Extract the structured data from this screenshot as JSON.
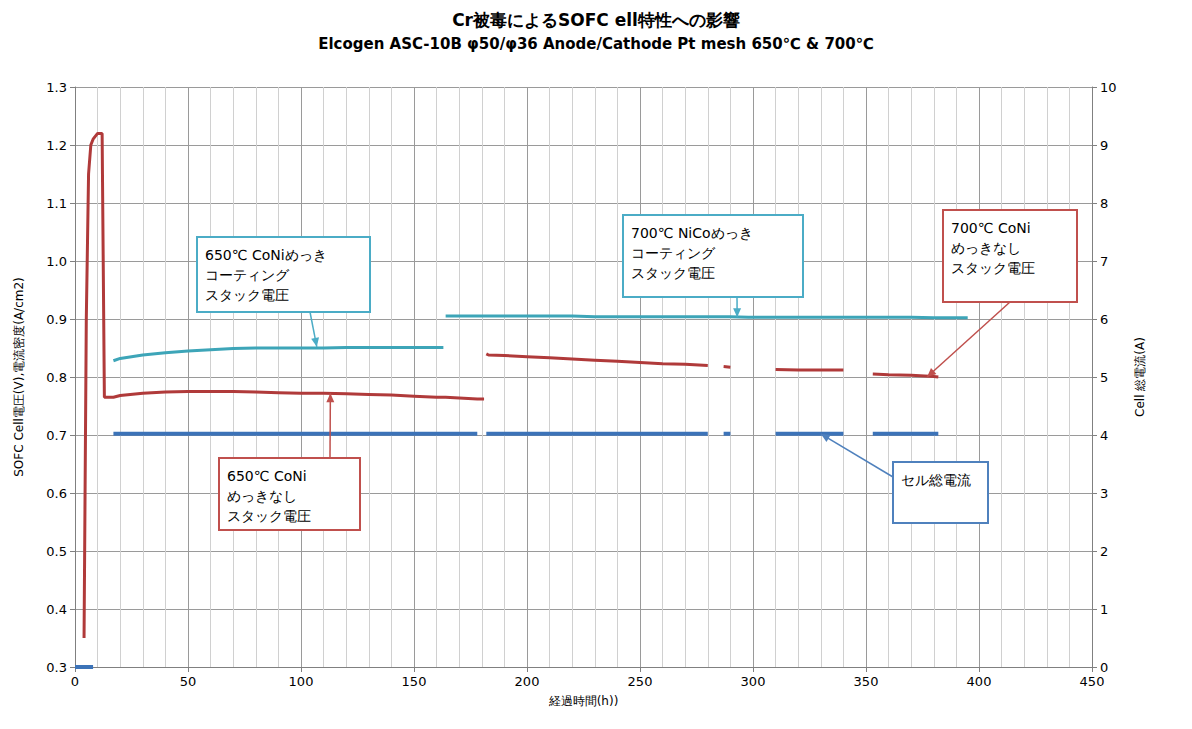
{
  "chart_data": {
    "type": "line",
    "title": "Cr被毒によるSOFC ell特性への影響",
    "subtitle": "Elcogen ASC-10B φ50/φ36 Anode/Cathode Pt mesh 650℃ & 700℃",
    "x_label": "経過時間(h))",
    "y_label": "SOFC Cell電圧(V),電流密度(A/cm2)",
    "y2_label": "Cell 総電流(A)",
    "grid": true,
    "xlim": [
      0,
      450
    ],
    "xticks": [
      0,
      50,
      100,
      150,
      200,
      250,
      300,
      350,
      400,
      450
    ],
    "ylim": [
      0.3,
      1.3
    ],
    "yticks": [
      0.3,
      0.4,
      0.5,
      0.6,
      0.7,
      0.8,
      0.9,
      {
        "value": 1,
        "label": "1.0"
      },
      1.1,
      1.2,
      1.3
    ],
    "y2lim": [
      0,
      10
    ],
    "y2ticks": [
      0,
      1,
      2,
      3,
      4,
      5,
      6,
      7,
      8,
      9,
      10
    ],
    "x": [
      0,
      4,
      5,
      6,
      7,
      8,
      10,
      12,
      13,
      17,
      20,
      30,
      40,
      50,
      60,
      70,
      80,
      90,
      100,
      110,
      120,
      130,
      140,
      150,
      160,
      163,
      164,
      170,
      178,
      180,
      181,
      182,
      183,
      190,
      200,
      210,
      220,
      230,
      240,
      250,
      260,
      270,
      280,
      283,
      287,
      290,
      298,
      310,
      320,
      330,
      340,
      345,
      353,
      360,
      370,
      380,
      382,
      390,
      395
    ],
    "series": [
      {
        "color": "#b03a3a",
        "line_style": "solid",
        "values": [
          null,
          0.35,
          0.9,
          1.15,
          1.2,
          1.21,
          1.22,
          1.22,
          0.765,
          0.765,
          0.768,
          0.772,
          0.774,
          0.775,
          0.775,
          0.775,
          0.774,
          0.773,
          0.772,
          0.772,
          0.771,
          0.77,
          0.769,
          0.767,
          0.765,
          0.765,
          0.765,
          0.764,
          0.762,
          0.762,
          0.762,
          null,
          null,
          null,
          null,
          null,
          null,
          null,
          null,
          null,
          null,
          null,
          null,
          null,
          null,
          null,
          null,
          null,
          null,
          null,
          null,
          null,
          null,
          null,
          null,
          null,
          null,
          null,
          null
        ]
      },
      {
        "color": "#b03a3a",
        "line_style": "solid",
        "values": [
          null,
          null,
          null,
          null,
          null,
          null,
          null,
          null,
          null,
          null,
          null,
          null,
          null,
          null,
          null,
          null,
          null,
          null,
          null,
          null,
          null,
          null,
          null,
          null,
          null,
          null,
          null,
          null,
          null,
          null,
          null,
          0.84,
          0.838,
          0.837,
          0.835,
          0.833,
          0.831,
          0.829,
          0.827,
          0.825,
          0.823,
          0.822,
          0.82,
          null,
          0.818,
          0.817,
          null,
          0.813,
          0.812,
          0.812,
          0.812,
          null,
          0.805,
          0.804,
          0.803,
          0.801,
          0.8,
          null,
          null
        ]
      },
      {
        "color": "#3da5b8",
        "line_style": "solid",
        "values": [
          null,
          null,
          null,
          null,
          null,
          null,
          null,
          null,
          null,
          0.828,
          0.832,
          0.838,
          0.842,
          0.845,
          0.847,
          0.849,
          0.85,
          0.85,
          0.85,
          0.85,
          0.851,
          0.851,
          0.851,
          0.851,
          0.851,
          0.851,
          null,
          null,
          null,
          null,
          null,
          null,
          null,
          null,
          null,
          null,
          null,
          null,
          null,
          null,
          null,
          null,
          null,
          null,
          null,
          null,
          null,
          null,
          null,
          null,
          null,
          null,
          null,
          null,
          null,
          null,
          null,
          null,
          null
        ]
      },
      {
        "color": "#3da5b8",
        "line_style": "solid",
        "values": [
          null,
          null,
          null,
          null,
          null,
          null,
          null,
          null,
          null,
          null,
          null,
          null,
          null,
          null,
          null,
          null,
          null,
          null,
          null,
          null,
          null,
          null,
          null,
          null,
          null,
          null,
          0.905,
          0.905,
          0.905,
          0.905,
          0.905,
          0.905,
          0.905,
          0.905,
          0.905,
          0.905,
          0.905,
          0.904,
          0.904,
          0.904,
          0.904,
          0.904,
          0.904,
          0.904,
          0.904,
          0.904,
          0.903,
          0.903,
          0.903,
          0.903,
          0.903,
          0.903,
          0.903,
          0.903,
          0.903,
          0.902,
          0.902,
          0.902,
          0.902
        ]
      },
      {
        "color": "#3c73b8",
        "line_style": "solid",
        "axis": "y2",
        "values": [
          0,
          0,
          0,
          0,
          0,
          0,
          null,
          null,
          null,
          4.02,
          4.02,
          4.02,
          4.02,
          4.02,
          4.02,
          4.02,
          4.02,
          4.02,
          4.02,
          4.02,
          4.02,
          4.02,
          4.02,
          4.02,
          4.02,
          4.02,
          4.02,
          4.02,
          4.02,
          null,
          null,
          4.02,
          4.02,
          4.02,
          4.02,
          4.02,
          4.02,
          4.02,
          4.02,
          4.02,
          4.02,
          4.02,
          4.02,
          null,
          4.02,
          4.02,
          null,
          4.02,
          4.02,
          4.02,
          4.02,
          null,
          4.02,
          4.02,
          4.02,
          4.02,
          4.02,
          null,
          null
        ]
      }
    ],
    "annotations": [
      {
        "text": [
          "650℃ CoNiめっき",
          "コーティング",
          "スタック電圧"
        ],
        "color": "#4bacc6",
        "x": 107,
        "y": 0.852
      },
      {
        "text": [
          "700℃ NiCoめっき",
          "コーティング",
          "スタック電圧"
        ],
        "color": "#4bacc6",
        "x": 293,
        "y": 0.903
      },
      {
        "text": [
          "700℃ CoNi",
          "めっきなし",
          "スタック電圧"
        ],
        "color": "#c0504d",
        "x": 377,
        "y": 0.8
      },
      {
        "text": [
          "650℃ CoNi",
          "めっきなし",
          "スタック電圧"
        ],
        "color": "#c0504d",
        "x": 113,
        "y": 0.772
      },
      {
        "text": [
          "セル総電流"
        ],
        "color": "#4f81bd",
        "x": 330,
        "y": 4.02,
        "axis": "y2"
      }
    ]
  }
}
